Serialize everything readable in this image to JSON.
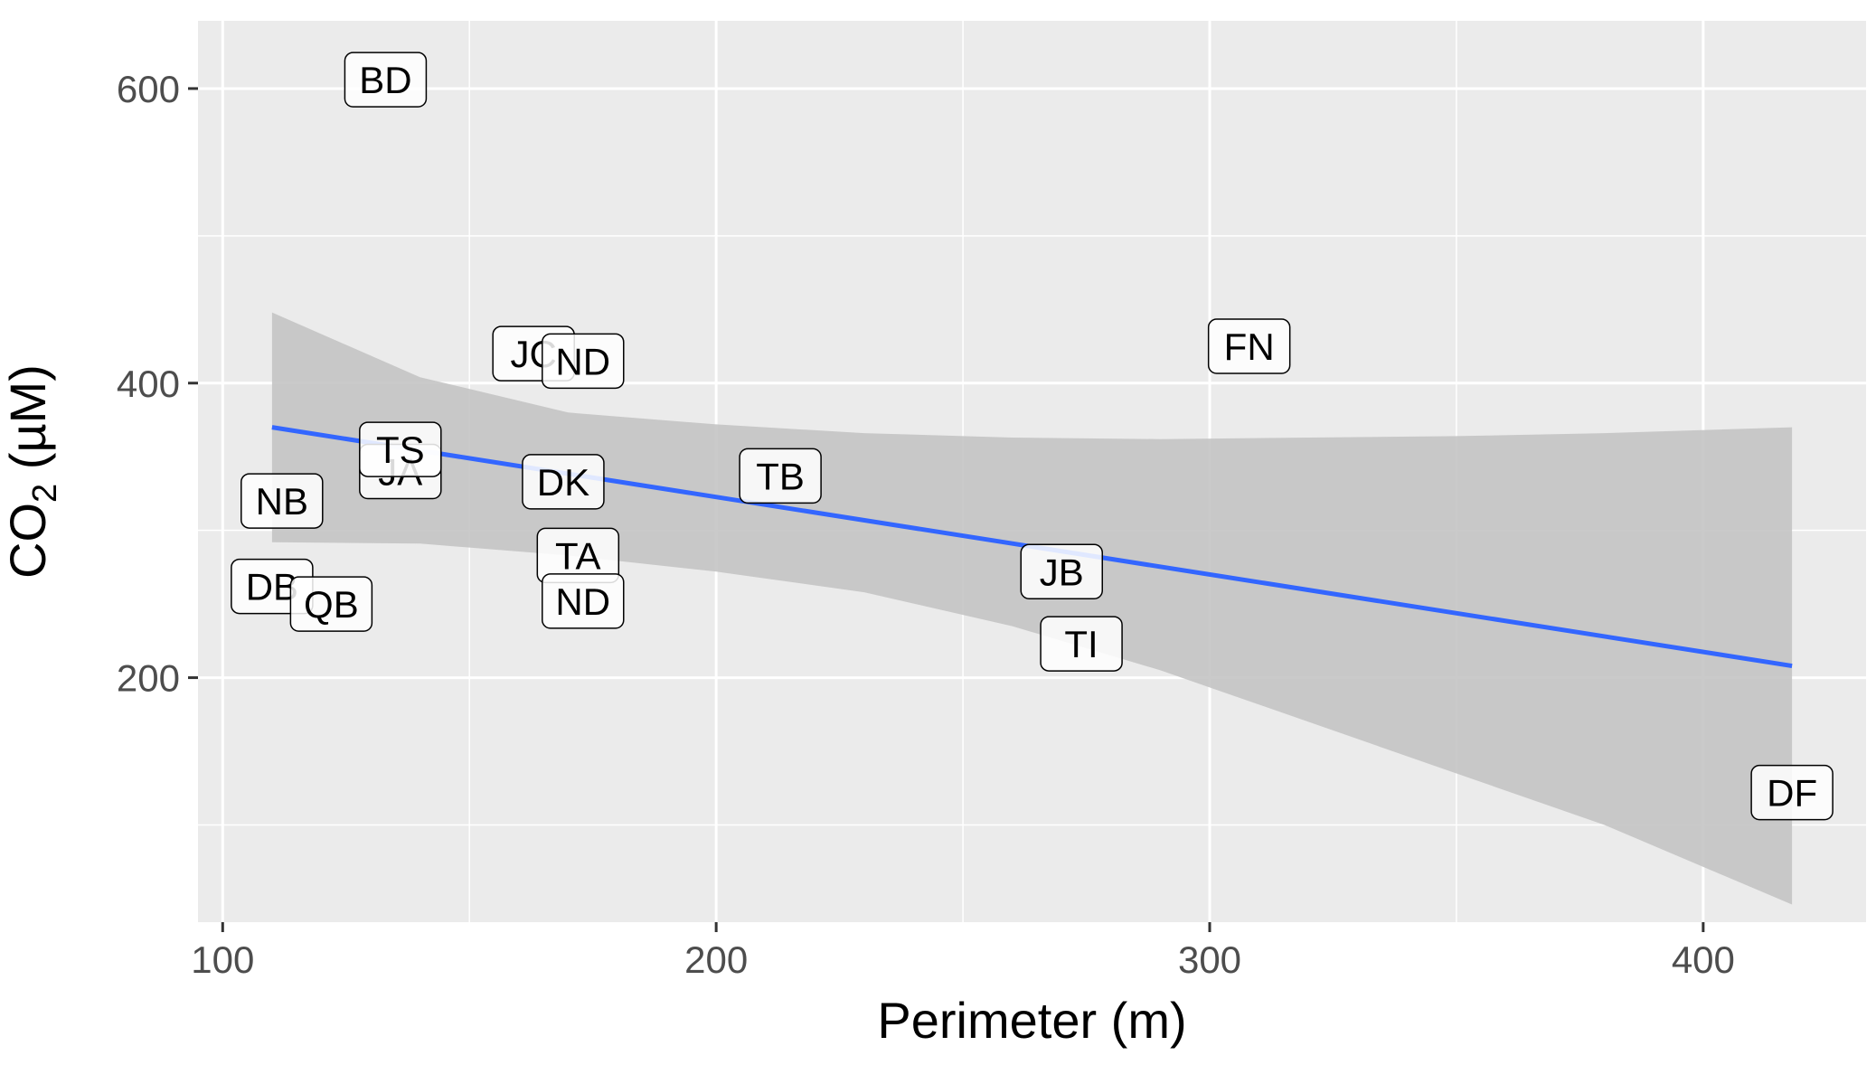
{
  "chart_data": {
    "type": "scatter",
    "xlabel": "Perimeter (m)",
    "ylabel": {
      "base": "CO",
      "sub": "2",
      "rest": " (µM)"
    },
    "xlim": [
      95,
      433
    ],
    "ylim": [
      34,
      646
    ],
    "x_ticks": [
      100,
      200,
      300,
      400
    ],
    "x_minor": [
      150,
      250,
      350
    ],
    "y_ticks": [
      200,
      400,
      600
    ],
    "y_minor": [
      100,
      300,
      500
    ],
    "grid": true,
    "points": [
      {
        "label": "BD",
        "x": 133,
        "y": 606
      },
      {
        "label": "JC",
        "x": 163,
        "y": 420
      },
      {
        "label": "ND",
        "x": 173,
        "y": 415
      },
      {
        "label": "FN",
        "x": 308,
        "y": 425
      },
      {
        "label": "JA",
        "x": 136,
        "y": 340
      },
      {
        "label": "TS",
        "x": 136,
        "y": 355
      },
      {
        "label": "NB",
        "x": 112,
        "y": 320
      },
      {
        "label": "DK",
        "x": 169,
        "y": 333
      },
      {
        "label": "TB",
        "x": 213,
        "y": 337
      },
      {
        "label": "TA",
        "x": 172,
        "y": 283
      },
      {
        "label": "ND",
        "x": 173,
        "y": 252
      },
      {
        "label": "DB",
        "x": 110,
        "y": 262
      },
      {
        "label": "QB",
        "x": 122,
        "y": 250
      },
      {
        "label": "JB",
        "x": 270,
        "y": 272
      },
      {
        "label": "TI",
        "x": 274,
        "y": 223
      },
      {
        "label": "DF",
        "x": 418,
        "y": 122
      }
    ],
    "fit": {
      "color": "#3366FF",
      "x": [
        110,
        418
      ],
      "y": [
        370,
        208
      ],
      "band_color": "#C4C4C4",
      "band_x": [
        110,
        140,
        170,
        200,
        230,
        260,
        290,
        320,
        350,
        380,
        418
      ],
      "band_upper": [
        448,
        404,
        380,
        372,
        366,
        363,
        362,
        363,
        364,
        366,
        370
      ],
      "band_lower": [
        292,
        291,
        283,
        272,
        258,
        235,
        205,
        170,
        135,
        100,
        46
      ]
    }
  },
  "colors": {
    "panel_bg": "#EBEBEB",
    "grid_major": "#FFFFFF",
    "label_fill": "#FFFFFF",
    "label_border": "#000000"
  }
}
